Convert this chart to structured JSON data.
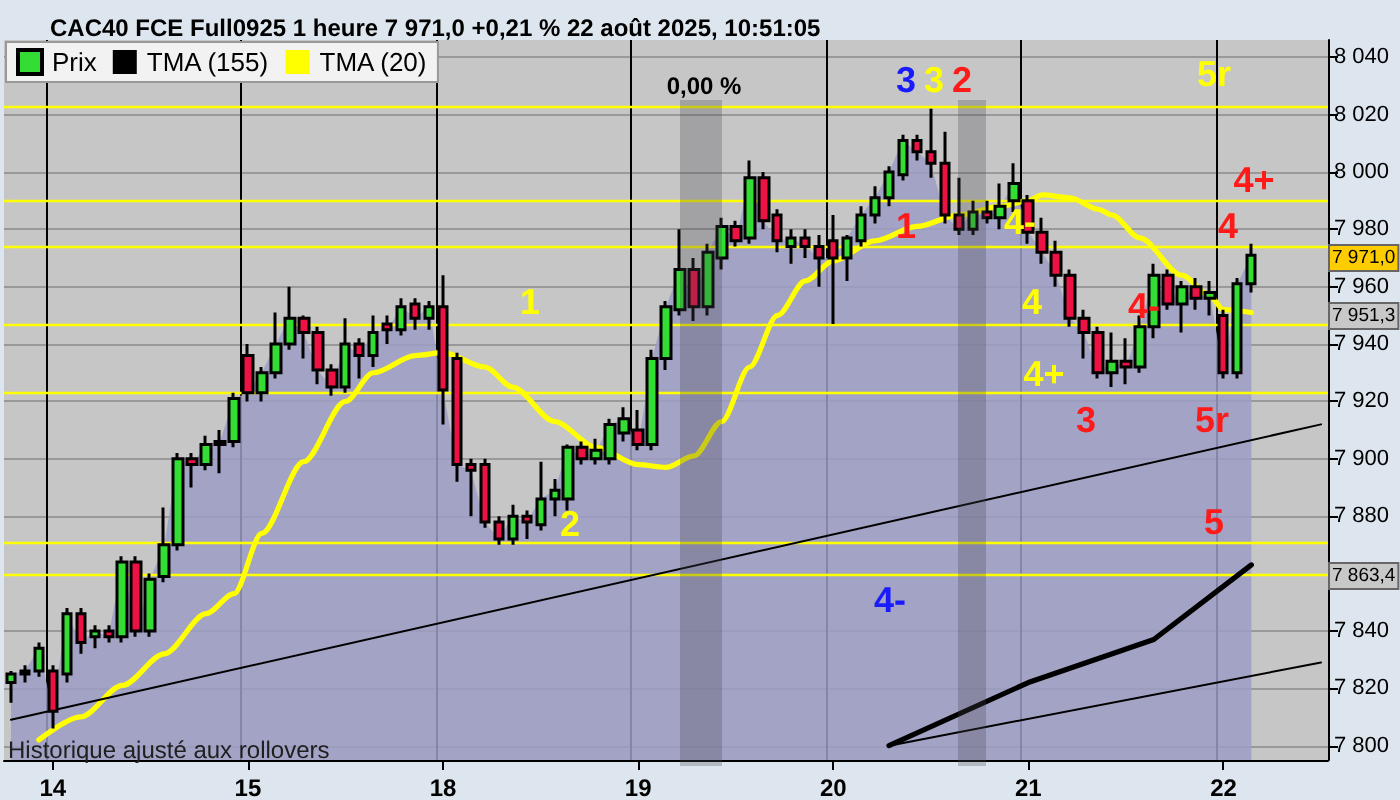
{
  "chart_data": {
    "type": "candlestick",
    "title": "CAC40 FCE Full0925 1 heure 7 971,0 +0,21 % 22 août 2025, 10:51:05",
    "categories": [
      null,
      null,
      null,
      "14",
      null,
      null,
      null,
      null,
      null,
      null,
      null,
      null,
      null,
      null,
      null,
      null,
      null,
      "15",
      null,
      null,
      null,
      null,
      null,
      null,
      null,
      null,
      null,
      null,
      null,
      null,
      null,
      "18",
      null,
      null,
      null,
      null,
      null,
      null,
      null,
      null,
      null,
      null,
      null,
      null,
      null,
      "19",
      null,
      null,
      null,
      null,
      null,
      null,
      null,
      null,
      null,
      null,
      null,
      null,
      null,
      "20",
      null,
      null,
      null,
      null,
      null,
      null,
      null,
      null,
      null,
      null,
      null,
      null,
      null,
      "21",
      null,
      null,
      null,
      null,
      null,
      null,
      null,
      null,
      null,
      null,
      null,
      null,
      null,
      "22",
      null,
      null,
      null,
      null,
      null,
      null,
      null
    ],
    "series": [
      {
        "name": "Prix",
        "ohlc": [
          [
            7822,
            7826,
            7815,
            7825
          ],
          [
            7825,
            7828,
            7822,
            7826
          ],
          [
            7826,
            7836,
            7824,
            7834
          ],
          [
            7826,
            7828,
            7806,
            7812
          ],
          [
            7825,
            7848,
            7822,
            7846
          ],
          [
            7846,
            7848,
            7832,
            7836
          ],
          [
            7838,
            7842,
            7834,
            7840
          ],
          [
            7840,
            7842,
            7836,
            7838
          ],
          [
            7838,
            7866,
            7836,
            7864
          ],
          [
            7864,
            7866,
            7838,
            7840
          ],
          [
            7840,
            7860,
            7838,
            7858
          ],
          [
            7859,
            7883,
            7857,
            7870
          ],
          [
            7870,
            7902,
            7868,
            7900
          ],
          [
            7900,
            7902,
            7890,
            7898
          ],
          [
            7898,
            7908,
            7896,
            7905
          ],
          [
            7905,
            7910,
            7895,
            7906
          ],
          [
            7906,
            7923,
            7904,
            7921
          ],
          [
            7936,
            7940,
            7920,
            7923
          ],
          [
            7923,
            7932,
            7920,
            7930
          ],
          [
            7930,
            7951,
            7928,
            7940
          ],
          [
            7940,
            7960,
            7938,
            7949
          ],
          [
            7949,
            7950,
            7935,
            7944
          ],
          [
            7944,
            7946,
            7926,
            7931
          ],
          [
            7931,
            7933,
            7922,
            7925
          ],
          [
            7925,
            7949,
            7923,
            7940
          ],
          [
            7940,
            7942,
            7928,
            7936
          ],
          [
            7936,
            7950,
            7932,
            7944
          ],
          [
            7947,
            7950,
            7940,
            7945
          ],
          [
            7945,
            7956,
            7943,
            7953
          ],
          [
            7954,
            7956,
            7945,
            7949
          ],
          [
            7949,
            7955,
            7945,
            7953
          ],
          [
            7953,
            7964,
            7912,
            7924
          ],
          [
            7935,
            7937,
            7892,
            7898
          ],
          [
            7898,
            7900,
            7880,
            7896
          ],
          [
            7898,
            7900,
            7876,
            7878
          ],
          [
            7878,
            7880,
            7870,
            7872
          ],
          [
            7872,
            7884,
            7870,
            7880
          ],
          [
            7880,
            7882,
            7872,
            7878
          ],
          [
            7877,
            7899,
            7875,
            7886
          ],
          [
            7886,
            7893,
            7880,
            7889
          ],
          [
            7886,
            7905,
            7882,
            7904
          ],
          [
            7904,
            7906,
            7898,
            7900
          ],
          [
            7900,
            7907,
            7898,
            7903
          ],
          [
            7900,
            7914,
            7898,
            7912
          ],
          [
            7909,
            7918,
            7906,
            7914
          ],
          [
            7910,
            7917,
            7903,
            7905
          ],
          [
            7905,
            7938,
            7903,
            7935
          ],
          [
            7935,
            7955,
            7931,
            7953
          ],
          [
            7952,
            7980,
            7950,
            7966
          ],
          [
            7966,
            7970,
            7948,
            7953
          ],
          [
            7953,
            7975,
            7950,
            7972
          ],
          [
            7970,
            7984,
            7966,
            7981
          ],
          [
            7981,
            7983,
            7974,
            7976
          ],
          [
            7977,
            8004,
            7975,
            7998
          ],
          [
            7998,
            8000,
            7980,
            7983
          ],
          [
            7985,
            7987,
            7972,
            7976
          ],
          [
            7974,
            7980,
            7968,
            7977
          ],
          [
            7977,
            7980,
            7970,
            7974
          ],
          [
            7974,
            7978,
            7960,
            7970
          ],
          [
            7976,
            7985,
            7947,
            7970
          ],
          [
            7970,
            7978,
            7962,
            7977
          ],
          [
            7976,
            7988,
            7974,
            7985
          ],
          [
            7985,
            7995,
            7982,
            7991
          ],
          [
            7991,
            8002,
            7988,
            8000
          ],
          [
            7999,
            8013,
            7997,
            8011
          ],
          [
            8011,
            8013,
            8004,
            8007
          ],
          [
            8007,
            8022,
            7998,
            8003
          ],
          [
            8003,
            8014,
            7982,
            7985
          ],
          [
            7985,
            7998,
            7978,
            7980
          ],
          [
            7980,
            7990,
            7978,
            7986
          ],
          [
            7986,
            7990,
            7982,
            7984
          ],
          [
            7984,
            7996,
            7980,
            7988
          ],
          [
            7990,
            8003,
            7986,
            7996
          ],
          [
            7990,
            7992,
            7975,
            7979
          ],
          [
            7979,
            7984,
            7968,
            7972
          ],
          [
            7972,
            7976,
            7960,
            7964
          ],
          [
            7964,
            7966,
            7946,
            7949
          ],
          [
            7949,
            7952,
            7935,
            7944
          ],
          [
            7944,
            7946,
            7928,
            7930
          ],
          [
            7930,
            7944,
            7925,
            7934
          ],
          [
            7934,
            7942,
            7926,
            7932
          ],
          [
            7932,
            7950,
            7930,
            7946
          ],
          [
            7946,
            7968,
            7942,
            7964
          ],
          [
            7964,
            7966,
            7952,
            7954
          ],
          [
            7954,
            7962,
            7944,
            7960
          ],
          [
            7960,
            7963,
            7952,
            7956
          ],
          [
            7956,
            7962,
            7950,
            7958
          ],
          [
            7950,
            7952,
            7928,
            7930
          ],
          [
            7930,
            7963,
            7928,
            7961
          ],
          [
            7961,
            7975,
            7958,
            7971
          ],
          null,
          null,
          null,
          null,
          null
        ],
        "colors": [
          "#33dd33",
          "#33dd33",
          "#33dd33",
          "#ee1144",
          "#33dd33",
          "#ee1144",
          "#33dd33",
          "#ee1144",
          "#33dd33",
          "#ee1144",
          "#33dd33",
          "#33dd33",
          "#33dd33",
          "#ee1144",
          "#33dd33",
          "#33dd33",
          "#33dd33",
          "#ee1144",
          "#33dd33",
          "#33dd33",
          "#33dd33",
          "#ee1144",
          "#ee1144",
          "#ee1144",
          "#33dd33",
          "#ee1144",
          "#33dd33",
          "#ee1144",
          "#33dd33",
          "#ee1144",
          "#33dd33",
          "#ee1144",
          "#ee1144",
          "#ee1144",
          "#ee1144",
          "#ee1144",
          "#33dd33",
          "#ee1144",
          "#33dd33",
          "#33dd33",
          "#33dd33",
          "#ee1144",
          "#33dd33",
          "#33dd33",
          "#33dd33",
          "#ee1144",
          "#33dd33",
          "#33dd33",
          "#33dd33",
          "#ee1144",
          "#33dd33",
          "#33dd33",
          "#ee1144",
          "#33dd33",
          "#ee1144",
          "#ee1144",
          "#33dd33",
          "#ee1144",
          "#ee1144",
          "#ee1144",
          "#33dd33",
          "#33dd33",
          "#33dd33",
          "#33dd33",
          "#33dd33",
          "#ee1144",
          "#ee1144",
          "#ee1144",
          "#ee1144",
          "#33dd33",
          "#ee1144",
          "#33dd33",
          "#33dd33",
          "#ee1144",
          "#ee1144",
          "#ee1144",
          "#ee1144",
          "#ee1144",
          "#ee1144",
          "#33dd33",
          "#ee1144",
          "#33dd33",
          "#33dd33",
          "#ee1144",
          "#33dd33",
          "#ee1144",
          "#33dd33",
          "#ee1144",
          "#33dd33",
          "#33dd33",
          null,
          null,
          null,
          null,
          null
        ]
      },
      {
        "name": "TMA (155)",
        "type": "line",
        "color": "#000000",
        "values": [
          null,
          null,
          null,
          null,
          null,
          null,
          null,
          null,
          null,
          null,
          null,
          null,
          null,
          null,
          null,
          null,
          null,
          null,
          null,
          null,
          null,
          null,
          null,
          null,
          null,
          null,
          null,
          null,
          null,
          null,
          null,
          null,
          null,
          null,
          null,
          null,
          null,
          null,
          null,
          null,
          null,
          null,
          null,
          null,
          null,
          null,
          null,
          null,
          null,
          null,
          null,
          null,
          null,
          null,
          null,
          null,
          null,
          null,
          null,
          null,
          null,
          null,
          null,
          7800,
          null,
          null,
          null,
          null,
          null,
          null,
          null,
          null,
          null,
          7822,
          null,
          null,
          null,
          null,
          null,
          null,
          null,
          null,
          7837,
          null,
          null,
          null,
          null,
          null,
          null,
          7863,
          null,
          null,
          null,
          null,
          null
        ]
      },
      {
        "name": "TMA (20)",
        "type": "line",
        "color": "#ffff00",
        "values": [
          null,
          null,
          7802,
          null,
          null,
          7810,
          null,
          null,
          7821,
          null,
          null,
          7832,
          null,
          null,
          7846,
          null,
          7853,
          null,
          7874,
          null,
          null,
          7899,
          null,
          null,
          7920,
          null,
          7930,
          null,
          null,
          7936,
          null,
          7937,
          null,
          null,
          7932,
          null,
          7925,
          null,
          null,
          7913,
          null,
          null,
          7904,
          null,
          null,
          7898,
          null,
          7897,
          null,
          7901,
          null,
          7913,
          null,
          7932,
          null,
          7950,
          null,
          7962,
          null,
          7969,
          null,
          null,
          7976,
          null,
          null,
          7981,
          null,
          null,
          7985,
          null,
          null,
          7988,
          null,
          7990,
          7992,
          null,
          7991,
          null,
          7987,
          7985,
          null,
          7977,
          null,
          null,
          7964,
          null,
          7957,
          7952,
          null,
          7951,
          null,
          null,
          null,
          null,
          null
        ]
      },
      {
        "type": "line",
        "color": "#000000",
        "values": [
          7809,
          null,
          null,
          null,
          null,
          null,
          null,
          null,
          null,
          null,
          null,
          null,
          null,
          null,
          null,
          null,
          null,
          null,
          null,
          null,
          null,
          null,
          null,
          null,
          null,
          null,
          null,
          null,
          null,
          null,
          null,
          null,
          null,
          null,
          null,
          null,
          null,
          null,
          null,
          null,
          null,
          null,
          null,
          null,
          null,
          null,
          null,
          null,
          null,
          null,
          null,
          null,
          null,
          null,
          null,
          null,
          null,
          null,
          null,
          null,
          null,
          null,
          null,
          null,
          null,
          null,
          null,
          null,
          null,
          null,
          null,
          null,
          null,
          null,
          null,
          null,
          null,
          null,
          null,
          null,
          null,
          null,
          null,
          null,
          null,
          null,
          null,
          null,
          null,
          null,
          null,
          null,
          null,
          null,
          7912
        ]
      },
      {
        "type": "line",
        "color": "#000000",
        "values": [
          null,
          null,
          null,
          null,
          null,
          null,
          null,
          null,
          null,
          null,
          null,
          null,
          null,
          null,
          null,
          null,
          null,
          null,
          null,
          null,
          null,
          null,
          null,
          null,
          null,
          null,
          null,
          null,
          null,
          null,
          null,
          null,
          null,
          null,
          null,
          null,
          null,
          null,
          null,
          null,
          null,
          null,
          null,
          null,
          null,
          null,
          null,
          null,
          null,
          null,
          null,
          null,
          null,
          null,
          null,
          null,
          null,
          null,
          null,
          null,
          null,
          null,
          null,
          7800,
          null,
          null,
          null,
          null,
          null,
          null,
          null,
          null,
          null,
          null,
          null,
          null,
          null,
          null,
          null,
          null,
          null,
          null,
          null,
          null,
          null,
          null,
          null,
          null,
          null,
          null,
          null,
          null,
          null,
          null,
          7829
        ]
      }
    ],
    "ylim": [
      7795,
      8046
    ],
    "yticks": [
      {
        "value": 7800,
        "label": "7 800"
      },
      {
        "value": 7820,
        "label": "7 820"
      },
      {
        "value": 7840,
        "label": "7 840"
      },
      {
        "value": 7860,
        "label": null
      },
      {
        "value": 7880,
        "label": "7 880"
      },
      {
        "value": 7900,
        "label": "7 900"
      },
      {
        "value": 7920,
        "label": "7 920"
      },
      {
        "value": 7940,
        "label": "7 940"
      },
      {
        "value": 7960,
        "label": "7 960"
      },
      {
        "value": 7980,
        "label": "7 980"
      },
      {
        "value": 8000,
        "label": "8 000"
      },
      {
        "value": 8020,
        "label": "8 020"
      },
      {
        "value": 8040,
        "label": "8 040"
      }
    ],
    "ref_lines": [
      {
        "axis": "y",
        "value": 8023,
        "color": "#ffff00"
      },
      {
        "axis": "y",
        "value": 7990,
        "color": "#ffff00"
      },
      {
        "axis": "y",
        "value": 7974,
        "color": "#ffff00"
      },
      {
        "axis": "y",
        "value": 7947,
        "color": "#ffff00"
      },
      {
        "axis": "y",
        "value": 7923,
        "color": "#ffff00"
      },
      {
        "axis": "y",
        "value": 7871,
        "color": "#ffff00"
      },
      {
        "axis": "y",
        "value": 7860,
        "color": "#ffff00"
      }
    ],
    "annotations": [
      "1",
      "2",
      "3",
      "3",
      "2",
      "1",
      "4-",
      "4",
      "4+",
      "3",
      "4-",
      "4-",
      "4",
      "4+",
      "5r",
      "5r",
      "5",
      "7 971,0",
      "7 951,3",
      "7 863,4",
      "Historique ajusté aux rollovers",
      "0,00 %"
    ],
    "grid": true,
    "legend": "top left",
    "marker": "none"
  }
}
